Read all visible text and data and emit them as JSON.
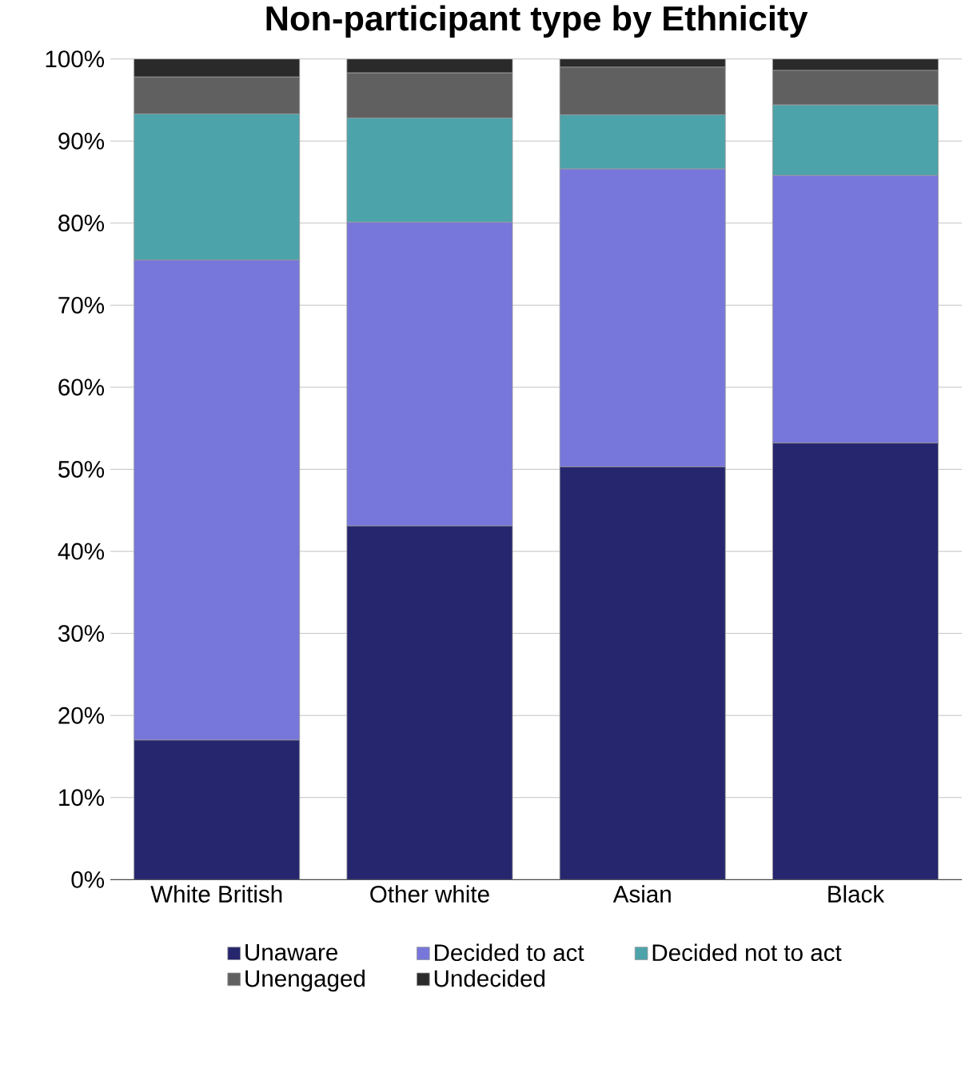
{
  "chart_data": {
    "type": "bar",
    "stacked": true,
    "title": "Non-participant type by Ethnicity",
    "categories": [
      "White British",
      "Other white",
      "Asian",
      "Black"
    ],
    "series": [
      {
        "name": "Unaware",
        "color": "#26266e",
        "values": [
          17,
          43.1,
          50.3,
          53.2
        ]
      },
      {
        "name": "Decided to act",
        "color": "#7777db",
        "values": [
          58.5,
          37,
          36.3,
          32.6
        ]
      },
      {
        "name": "Decided not to act",
        "color": "#4da3aa",
        "values": [
          17.8,
          12.7,
          6.6,
          8.6
        ]
      },
      {
        "name": "Unengaged",
        "color": "#606060",
        "values": [
          4.5,
          5.5,
          5.8,
          4.2
        ]
      },
      {
        "name": "Undecided",
        "color": "#2a2a2a",
        "values": [
          2.2,
          1.7,
          1,
          1.4
        ]
      }
    ],
    "ylim": [
      0,
      100
    ],
    "yticks": [
      {
        "value": 0,
        "label": "0%"
      },
      {
        "value": 10,
        "label": "10%"
      },
      {
        "value": 20,
        "label": "20%"
      },
      {
        "value": 30,
        "label": "30%"
      },
      {
        "value": 40,
        "label": "40%"
      },
      {
        "value": 50,
        "label": "50%"
      },
      {
        "value": 60,
        "label": "60%"
      },
      {
        "value": 70,
        "label": "70%"
      },
      {
        "value": 80,
        "label": "80%"
      },
      {
        "value": 90,
        "label": "90%"
      },
      {
        "value": 100,
        "label": "100%"
      }
    ],
    "grid": "y",
    "legend": "bottom"
  }
}
